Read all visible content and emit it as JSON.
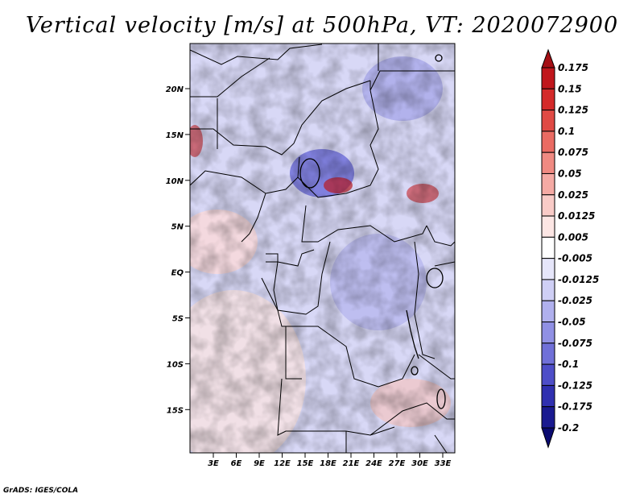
{
  "title": "Vertical velocity [m/s] at 500hPa, VT: 2020072900",
  "footer": "GrADS: IGES/COLA",
  "map": {
    "lat_ticks": [
      "20N",
      "15N",
      "10N",
      "5N",
      "EQ",
      "5S",
      "10S",
      "15S"
    ],
    "lon_ticks": [
      "3E",
      "6E",
      "9E",
      "12E",
      "15E",
      "18E",
      "21E",
      "24E",
      "27E",
      "30E",
      "33E"
    ]
  },
  "colorbar": {
    "levels": [
      "0.175",
      "0.15",
      "0.125",
      "0.1",
      "0.075",
      "0.05",
      "0.025",
      "0.0125",
      "0.005",
      "-0.005",
      "-0.0125",
      "-0.025",
      "-0.05",
      "-0.075",
      "-0.1",
      "-0.125",
      "-0.175",
      "-0.2"
    ],
    "colors": [
      "#a50f15",
      "#c0161c",
      "#d42a2a",
      "#e04a44",
      "#ea6b63",
      "#f08a82",
      "#f5aaa4",
      "#f9cbc7",
      "#fce6e4",
      "#ffffff",
      "#e6e6fa",
      "#cfcff5",
      "#b0b0ee",
      "#9090e4",
      "#7070d8",
      "#4e4ec8",
      "#3030b0",
      "#1a1a90",
      "#0a0a70"
    ]
  }
}
